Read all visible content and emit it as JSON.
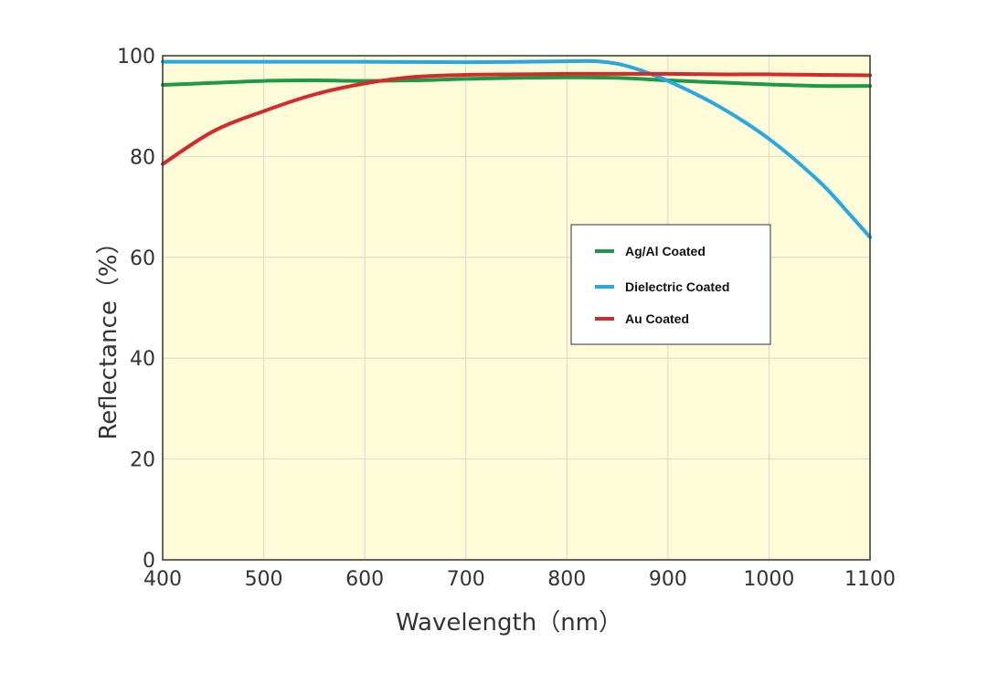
{
  "chart_data": {
    "type": "line",
    "title": "",
    "xlabel": "Wavelength（nm）",
    "ylabel": "Reflectance（%）",
    "xlim": [
      400,
      1100
    ],
    "ylim": [
      0,
      100
    ],
    "xticks": [
      400,
      500,
      600,
      700,
      800,
      900,
      1000,
      1100
    ],
    "yticks": [
      0,
      20,
      40,
      60,
      80,
      100
    ],
    "grid": true,
    "legend_position": "center-right",
    "plot_background": "#fdfbd8",
    "series": [
      {
        "name": "Ag/Al Coated",
        "color": "#1e9a46",
        "x": [
          400,
          450,
          500,
          550,
          600,
          650,
          700,
          750,
          800,
          850,
          900,
          950,
          1000,
          1050,
          1100
        ],
        "y": [
          94.2,
          94.6,
          95.0,
          95.1,
          95.0,
          95.1,
          95.4,
          95.6,
          95.7,
          95.6,
          95.1,
          94.7,
          94.3,
          94.0,
          94.0
        ]
      },
      {
        "name": "Dielectric Coated",
        "color": "#27a8e0",
        "x": [
          400,
          500,
          600,
          700,
          800,
          830,
          850,
          870,
          900,
          950,
          1000,
          1050,
          1080,
          1100
        ],
        "y": [
          98.8,
          98.8,
          98.8,
          98.7,
          98.9,
          98.9,
          98.4,
          97.3,
          95.0,
          90.0,
          83.5,
          75.0,
          68.5,
          64.0
        ]
      },
      {
        "name": "Au Coated",
        "color": "#d42a2a",
        "x": [
          400,
          450,
          500,
          550,
          600,
          650,
          700,
          750,
          800,
          850,
          900,
          950,
          1000,
          1050,
          1100
        ],
        "y": [
          78.5,
          85.0,
          89.0,
          92.3,
          94.5,
          95.8,
          96.2,
          96.3,
          96.4,
          96.4,
          96.4,
          96.3,
          96.3,
          96.2,
          96.1
        ]
      }
    ]
  }
}
